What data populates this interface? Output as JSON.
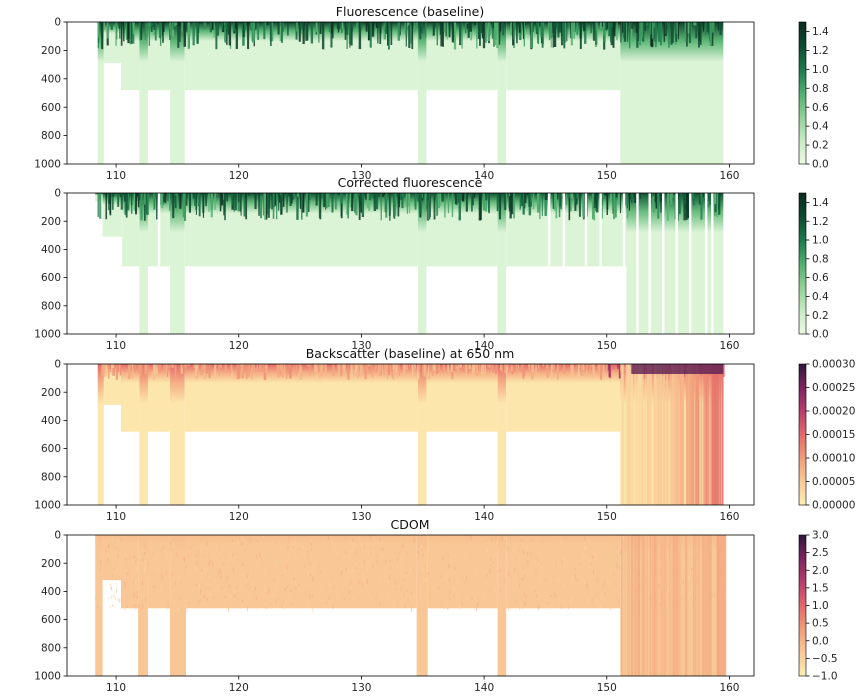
{
  "chart_data": [
    {
      "type": "heatmap",
      "title": "Fluorescence (baseline)",
      "xlim": [
        106,
        162
      ],
      "ylim": [
        1000,
        0
      ],
      "x_ticks": [
        110,
        120,
        130,
        140,
        150,
        160
      ],
      "y_ticks": [
        0,
        200,
        400,
        600,
        800,
        1000
      ],
      "colorbar": {
        "range": [
          0,
          1.5
        ],
        "ticks": [
          "0.0",
          "0.2",
          "0.4",
          "0.6",
          "0.8",
          "1.0",
          "1.2",
          "1.4"
        ],
        "ramp": [
          "#eafae3",
          "#c7ebc2",
          "#8fd096",
          "#4fae6e",
          "#1c7a4a",
          "#0d4a30",
          "#0b2b1c"
        ]
      },
      "coverage": [
        {
          "x": [
            108.5,
            109.0
          ],
          "max_depth": 1000
        },
        {
          "x": [
            109.0,
            110.4
          ],
          "max_depth": 290
        },
        {
          "x": [
            110.4,
            111.9
          ],
          "max_depth": 480
        },
        {
          "x": [
            111.9,
            112.6
          ],
          "max_depth": 1000
        },
        {
          "x": [
            112.6,
            114.4
          ],
          "max_depth": 480
        },
        {
          "x": [
            114.4,
            115.6
          ],
          "max_depth": 1000
        },
        {
          "x": [
            115.6,
            134.6
          ],
          "max_depth": 480
        },
        {
          "x": [
            134.6,
            135.3
          ],
          "max_depth": 1000
        },
        {
          "x": [
            135.3,
            141.1
          ],
          "max_depth": 480
        },
        {
          "x": [
            141.1,
            141.8
          ],
          "max_depth": 1000
        },
        {
          "x": [
            141.8,
            151.1
          ],
          "max_depth": 480
        },
        {
          "x": [
            151.1,
            159.5
          ],
          "max_depth": 1000
        }
      ],
      "surface_value": 1.3,
      "deep_value": 0.1
    },
    {
      "type": "heatmap",
      "title": "Corrected fluorescence",
      "xlim": [
        106,
        162
      ],
      "ylim": [
        1000,
        0
      ],
      "x_ticks": [
        110,
        120,
        130,
        140,
        150,
        160
      ],
      "y_ticks": [
        0,
        200,
        400,
        600,
        800,
        1000
      ],
      "colorbar": {
        "range": [
          0,
          1.5
        ],
        "ticks": [
          "0.0",
          "0.2",
          "0.4",
          "0.6",
          "0.8",
          "1.0",
          "1.2",
          "1.4"
        ],
        "ramp": [
          "#eafae3",
          "#c7ebc2",
          "#8fd096",
          "#4fae6e",
          "#1c7a4a",
          "#0d4a30",
          "#0b2b1c"
        ]
      },
      "coverage": [
        {
          "x": [
            108.3,
            108.9
          ],
          "max_depth": 60
        },
        {
          "x": [
            108.9,
            110.5
          ],
          "max_depth": 310
        },
        {
          "x": [
            110.5,
            111.9
          ],
          "max_depth": 520
        },
        {
          "x": [
            111.9,
            112.6
          ],
          "max_depth": 1000
        },
        {
          "x": [
            112.6,
            114.4
          ],
          "max_depth": 520
        },
        {
          "x": [
            114.4,
            115.6
          ],
          "max_depth": 1000
        },
        {
          "x": [
            115.6,
            134.6
          ],
          "max_depth": 520
        },
        {
          "x": [
            134.6,
            135.3
          ],
          "max_depth": 1000
        },
        {
          "x": [
            135.3,
            141.1
          ],
          "max_depth": 520
        },
        {
          "x": [
            141.1,
            141.8
          ],
          "max_depth": 1000
        },
        {
          "x": [
            141.8,
            151.6
          ],
          "max_depth": 520
        },
        {
          "x": [
            151.6,
            159.5
          ],
          "max_depth": 1000
        }
      ],
      "gaps_x": [
        113.5,
        145.3,
        146.5,
        148.3,
        149.5,
        151.4,
        152.5,
        153.5,
        154.6,
        155.7,
        156.8,
        158.1,
        158.6
      ],
      "surface_value": 1.2,
      "deep_value": 0.1
    },
    {
      "type": "heatmap",
      "title": "Backscatter (baseline) at 650 nm",
      "xlim": [
        106,
        162
      ],
      "ylim": [
        1000,
        0
      ],
      "x_ticks": [
        110,
        120,
        130,
        140,
        150,
        160
      ],
      "y_ticks": [
        0,
        200,
        400,
        600,
        800,
        1000
      ],
      "colorbar": {
        "range": [
          0,
          0.0003
        ],
        "ticks": [
          "0.00000",
          "0.00005",
          "0.00010",
          "0.00015",
          "0.00020",
          "0.00025",
          "0.00030"
        ],
        "ramp": [
          "#fdedb0",
          "#f9c996",
          "#f29c79",
          "#e3696a",
          "#b83b6c",
          "#7f2462",
          "#2d1739"
        ]
      },
      "coverage": [
        {
          "x": [
            108.5,
            109.0
          ],
          "max_depth": 1000
        },
        {
          "x": [
            109.0,
            110.4
          ],
          "max_depth": 290
        },
        {
          "x": [
            110.4,
            111.9
          ],
          "max_depth": 480
        },
        {
          "x": [
            111.9,
            112.6
          ],
          "max_depth": 1000
        },
        {
          "x": [
            112.6,
            114.4
          ],
          "max_depth": 480
        },
        {
          "x": [
            114.4,
            115.6
          ],
          "max_depth": 1000
        },
        {
          "x": [
            115.6,
            134.6
          ],
          "max_depth": 480
        },
        {
          "x": [
            134.6,
            135.3
          ],
          "max_depth": 1000
        },
        {
          "x": [
            135.3,
            141.1
          ],
          "max_depth": 480
        },
        {
          "x": [
            141.1,
            141.8
          ],
          "max_depth": 1000
        },
        {
          "x": [
            141.8,
            151.1
          ],
          "max_depth": 480
        },
        {
          "x": [
            151.1,
            159.5
          ],
          "max_depth": 1000
        }
      ],
      "surface_value": 0.00015,
      "deep_value": 1e-05,
      "east_value": 0.00012
    },
    {
      "type": "heatmap",
      "title": "CDOM",
      "xlim": [
        106,
        162
      ],
      "ylim": [
        1000,
        0
      ],
      "x_ticks": [
        110,
        120,
        130,
        140,
        150,
        160
      ],
      "y_ticks": [
        0,
        200,
        400,
        600,
        800,
        1000
      ],
      "colorbar": {
        "range": [
          -1,
          3
        ],
        "ticks": [
          "−1.0",
          "−0.5",
          "0.0",
          "0.5",
          "1.0",
          "1.5",
          "2.0",
          "2.5",
          "3.0"
        ],
        "ramp": [
          "#fdedb0",
          "#f9c996",
          "#f29c79",
          "#e3696a",
          "#b83b6c",
          "#7f2462",
          "#2d1739"
        ]
      },
      "coverage": [
        {
          "x": [
            108.3,
            108.9
          ],
          "max_depth": 1000
        },
        {
          "x": [
            108.9,
            110.4
          ],
          "max_depth": 320
        },
        {
          "x": [
            110.4,
            111.8
          ],
          "max_depth": 520
        },
        {
          "x": [
            111.8,
            112.6
          ],
          "max_depth": 1000
        },
        {
          "x": [
            112.6,
            114.4
          ],
          "max_depth": 520
        },
        {
          "x": [
            114.4,
            115.7
          ],
          "max_depth": 1000
        },
        {
          "x": [
            115.7,
            134.5
          ],
          "max_depth": 520
        },
        {
          "x": [
            134.5,
            135.4
          ],
          "max_depth": 1000
        },
        {
          "x": [
            135.4,
            141.1
          ],
          "max_depth": 520
        },
        {
          "x": [
            141.1,
            141.8
          ],
          "max_depth": 1000
        },
        {
          "x": [
            141.8,
            151.1
          ],
          "max_depth": 520
        },
        {
          "x": [
            151.1,
            159.7
          ],
          "max_depth": 1000
        }
      ],
      "base_value": -0.3,
      "east_value": 0.0
    }
  ]
}
